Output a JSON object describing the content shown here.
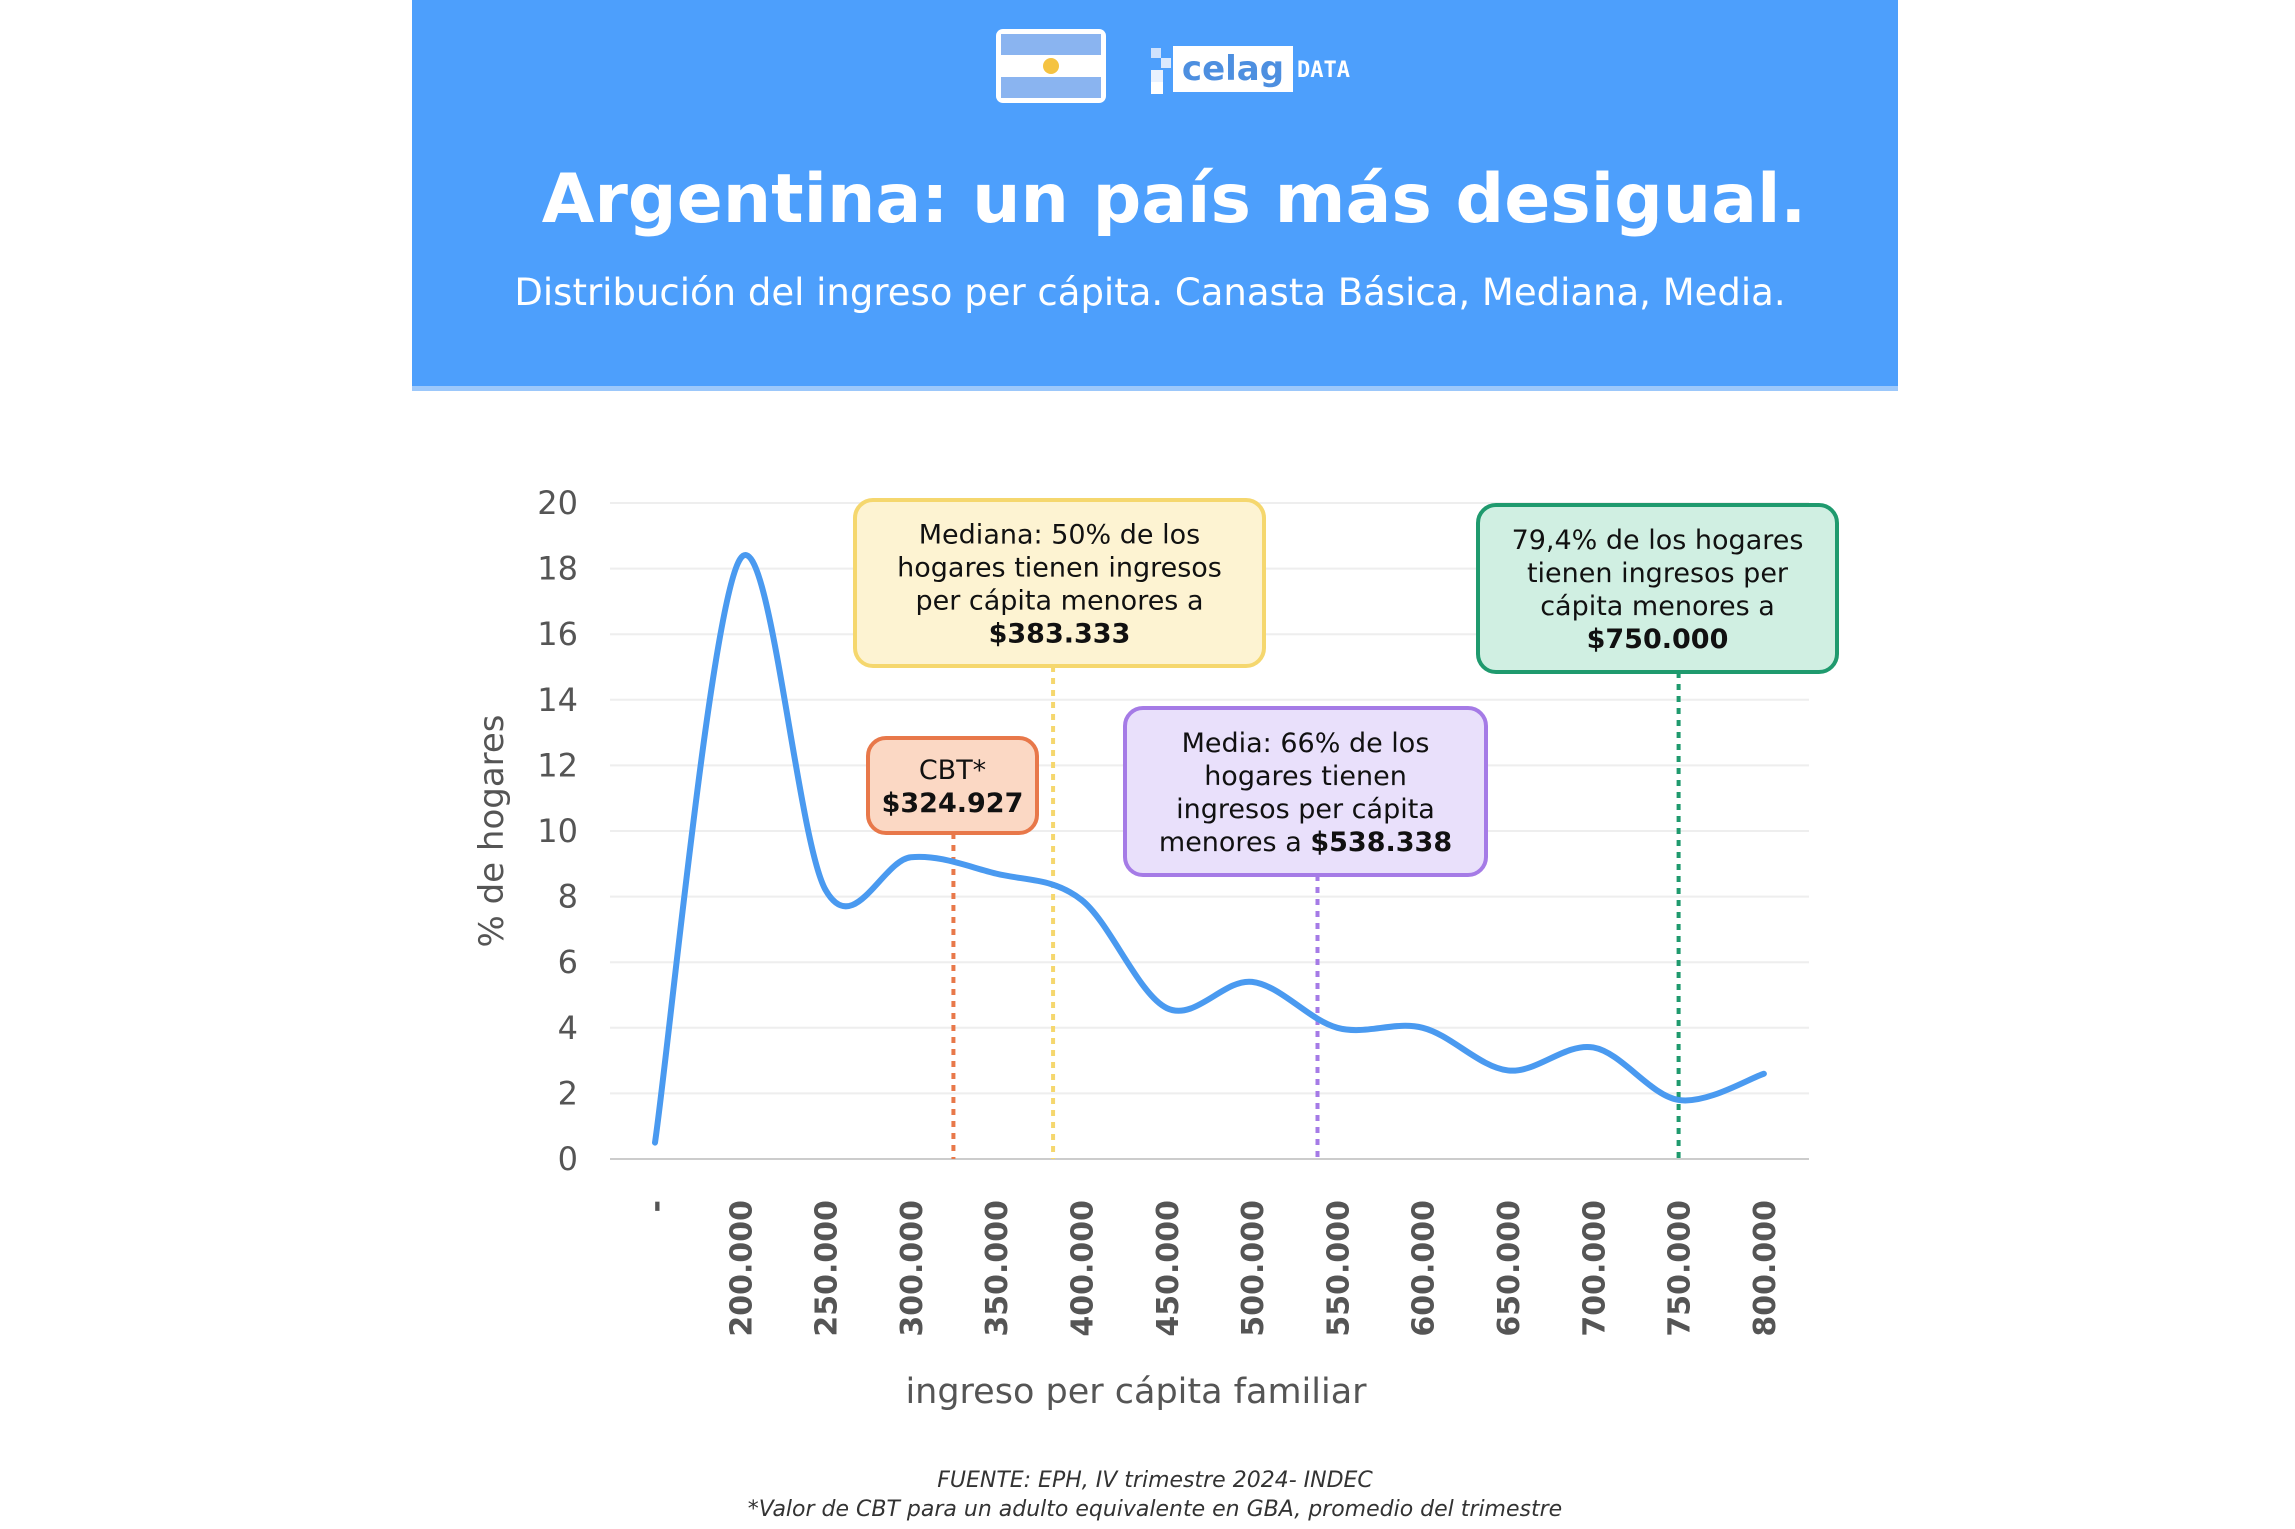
{
  "header": {
    "title": "Argentina: un país más desigual.",
    "subtitle": "Distribución del ingreso per cápita. Canasta Básica, Mediana, Media.",
    "logo_text": "celag",
    "logo_suffix": "DATA",
    "flag_icon": "argentina-flag",
    "bg_color": "#4d9ffc"
  },
  "chart_data": {
    "type": "line",
    "title": "Argentina: un país más desigual.",
    "xlabel": "ingreso per cápita familiar",
    "ylabel": "% de hogares",
    "ylim": [
      0,
      20
    ],
    "yticks": [
      "0",
      "2",
      "4",
      "6",
      "8",
      "10",
      "12",
      "14",
      "16",
      "18",
      "20"
    ],
    "categories": [
      "-",
      "200.000",
      "250.000",
      "300.000",
      "350.000",
      "400.000",
      "450.000",
      "500.000",
      "550.000",
      "600.000",
      "650.000",
      "700.000",
      "750.000",
      "800.000"
    ],
    "category_values": [
      150000,
      200000,
      250000,
      300000,
      350000,
      400000,
      450000,
      500000,
      550000,
      600000,
      650000,
      700000,
      750000,
      800000
    ],
    "series": [
      {
        "name": "% de hogares",
        "color": "#4a9af0",
        "values": [
          0.5,
          18.3,
          8.2,
          9.2,
          8.7,
          7.9,
          4.6,
          5.4,
          4.0,
          4.0,
          2.7,
          3.4,
          1.8,
          2.6
        ]
      }
    ],
    "grid": true,
    "annotations": [
      {
        "id": "cbt",
        "x": 324927,
        "lines": [
          "CBT*"
        ],
        "bold": "$324.927",
        "prefix": "",
        "color": "#e8784a",
        "fill": "#fbd8c4"
      },
      {
        "id": "mediana",
        "x": 383333,
        "lines": [
          "Mediana: 50% de los",
          "hogares tienen ingresos",
          "per cápita menores a"
        ],
        "bold": "$383.333",
        "prefix": "",
        "color": "#f5d76e",
        "fill": "#fdf3d2"
      },
      {
        "id": "media",
        "x": 538338,
        "lines": [
          "Media: 66% de los",
          "hogares tienen",
          "ingresos per cápita"
        ],
        "bold": "$538.338",
        "prefix": "menores a ",
        "color": "#a57be6",
        "fill": "#e9e0fb"
      },
      {
        "id": "p794",
        "x": 750000,
        "lines": [
          "79,4% de los hogares",
          "tienen ingresos per",
          "cápita menores a"
        ],
        "bold": "$750.000",
        "prefix": "",
        "color": "#1f9a6e",
        "fill": "#d0efe2"
      }
    ]
  },
  "footer": {
    "source": "FUENTE: EPH, IV trimestre 2024- INDEC",
    "note": "*Valor de CBT para un adulto equivalente en GBA, promedio del trimestre"
  }
}
